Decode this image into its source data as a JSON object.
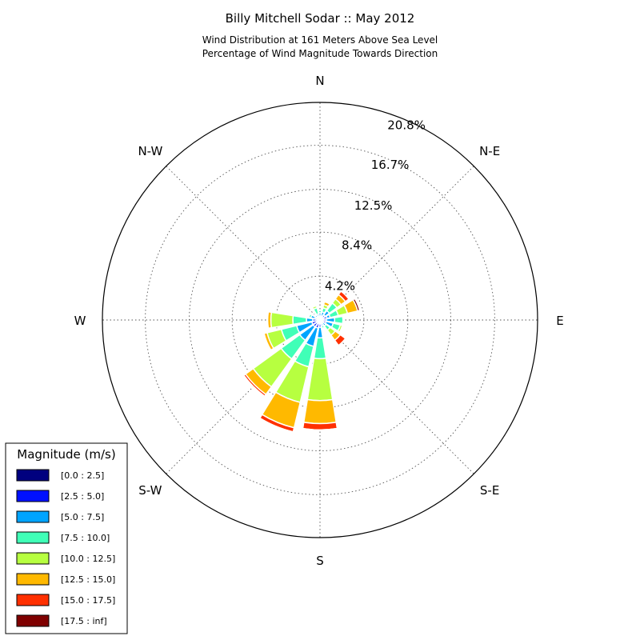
{
  "chart_data": {
    "type": "windrose",
    "title": "Billy Mitchell Sodar :: May 2012",
    "subtitle_lines": [
      "Wind Distribution at 161 Meters Above Sea Level",
      "Percentage of Wind Magnitude Towards Direction"
    ],
    "directions": [
      "N",
      "N-E",
      "E",
      "S-E",
      "S",
      "S-W",
      "W",
      "N-W"
    ],
    "radial_ticks": [
      "4.2%",
      "8.4%",
      "12.5%",
      "16.7%",
      "20.8%"
    ],
    "radial_tick_values": [
      4.2,
      8.4,
      12.5,
      16.7,
      20.8
    ],
    "rmax": 20.8,
    "sector_angles_deg": [
      0,
      22.5,
      45,
      67.5,
      90,
      112.5,
      135,
      157.5,
      180,
      202.5,
      225,
      247.5,
      270,
      292.5,
      315,
      337.5
    ],
    "bins": [
      {
        "label": "[0.0 : 2.5]",
        "color": "#00007f"
      },
      {
        "label": "[2.5 : 5.0]",
        "color": "#0010ff"
      },
      {
        "label": "[5.0 : 7.5]",
        "color": "#00a4ff"
      },
      {
        "label": "[7.5 : 10.0]",
        "color": "#40ffb7"
      },
      {
        "label": "[10.0 : 12.5]",
        "color": "#b7ff40"
      },
      {
        "label": "[12.5 : 15.0]",
        "color": "#ffb900"
      },
      {
        "label": "[15.0 : 17.5]",
        "color": "#ff3000"
      },
      {
        "label": "[17.5 : inf]",
        "color": "#7f0000"
      }
    ],
    "sectors": [
      [
        0.1,
        0.2,
        0.4,
        0.2,
        0.0,
        0.0,
        0.0,
        0.0
      ],
      [
        0.1,
        0.3,
        0.4,
        0.4,
        0.3,
        0.3,
        0.1,
        0.0
      ],
      [
        0.1,
        0.5,
        0.5,
        0.9,
        0.5,
        0.5,
        0.4,
        0.0
      ],
      [
        0.1,
        0.6,
        0.3,
        0.8,
        0.9,
        1.0,
        0.0,
        0.2
      ],
      [
        0.1,
        0.5,
        0.8,
        0.8,
        0.1,
        0.0,
        0.0,
        0.0
      ],
      [
        0.1,
        0.5,
        0.7,
        0.7,
        0.2,
        0.0,
        0.0,
        0.0
      ],
      [
        0.1,
        0.2,
        0.4,
        0.5,
        0.6,
        0.6,
        0.6,
        0.0
      ],
      [
        0.1,
        0.3,
        0.2,
        0.2,
        0.0,
        0.0,
        0.0,
        0.0
      ],
      [
        0.2,
        0.5,
        1.0,
        2.0,
        4.0,
        2.2,
        0.6,
        0.1
      ],
      [
        0.2,
        0.6,
        1.8,
        2.0,
        3.5,
        2.5,
        0.4,
        0.1
      ],
      [
        0.2,
        0.6,
        1.6,
        2.2,
        3.3,
        0.9,
        0.2,
        0.0
      ],
      [
        0.1,
        0.7,
        1.5,
        1.5,
        1.4,
        0.3,
        0.0,
        0.0
      ],
      [
        0.1,
        0.6,
        0.6,
        1.3,
        2.1,
        0.3,
        0.0,
        0.0
      ],
      [
        0.1,
        0.4,
        0.4,
        0.2,
        0.1,
        0.0,
        0.0,
        0.0
      ],
      [
        0.1,
        0.3,
        0.2,
        0.1,
        0.0,
        0.0,
        0.0,
        0.0
      ],
      [
        0.1,
        0.3,
        0.2,
        0.6,
        0.2,
        0.0,
        0.0,
        0.0
      ]
    ],
    "legend": {
      "title": "Magnitude (m/s)",
      "placement": "lower-left"
    },
    "grid": true
  }
}
